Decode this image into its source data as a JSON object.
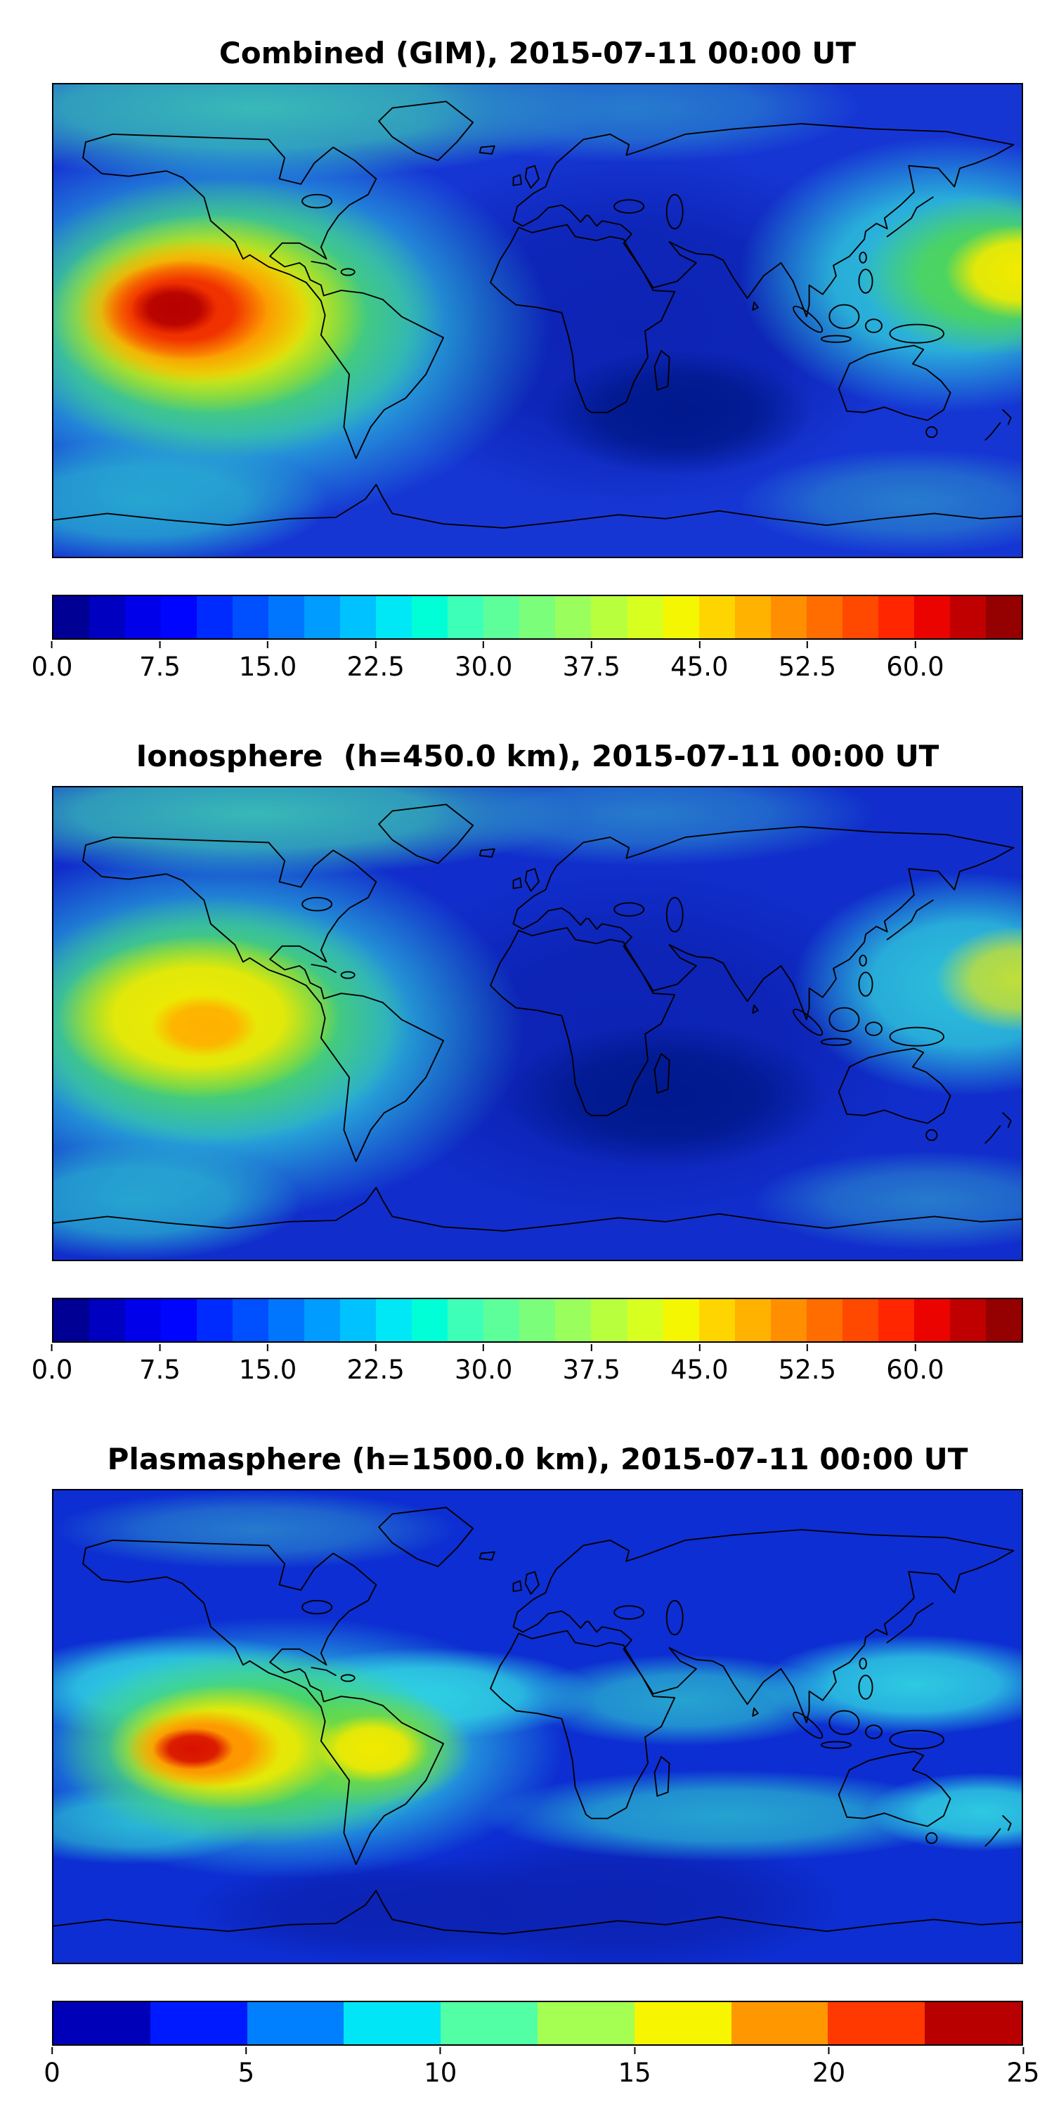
{
  "figure": {
    "background": "#ffffff",
    "text_color": "#000000",
    "panels": [
      {
        "id": "combined",
        "title": "Combined (GIM), 2015-07-11 00:00 UT",
        "colorbar": {
          "colormap": "jet",
          "vmin": 0,
          "vmax": 67.5,
          "tick_labels": [
            "0.0",
            "7.5",
            "15.0",
            "22.5",
            "30.0",
            "37.5",
            "45.0",
            "52.5",
            "60.0"
          ],
          "tick_values": [
            0,
            7.5,
            15,
            22.5,
            30,
            37.5,
            45,
            52.5,
            60
          ],
          "colors": [
            "#000095",
            "#0000c0",
            "#0000eb",
            "#0005ff",
            "#002bff",
            "#0050ff",
            "#0076ff",
            "#009cff",
            "#00c2ff",
            "#00e7f5",
            "#00ffd7",
            "#3effb8",
            "#5dff9a",
            "#7bff7b",
            "#9aff5d",
            "#b8ff3e",
            "#d7ff20",
            "#f5f702",
            "#ffd500",
            "#ffb200",
            "#ff8f00",
            "#ff6c00",
            "#ff4900",
            "#ff2600",
            "#eb0300",
            "#c00000",
            "#950000"
          ]
        }
      },
      {
        "id": "ionosphere",
        "title": "Ionosphere  (h=450.0 km), 2015-07-11 00:00 UT",
        "colorbar": {
          "colormap": "jet",
          "vmin": 0,
          "vmax": 67.5,
          "tick_labels": [
            "0.0",
            "7.5",
            "15.0",
            "22.5",
            "30.0",
            "37.5",
            "45.0",
            "52.5",
            "60.0"
          ],
          "tick_values": [
            0,
            7.5,
            15,
            22.5,
            30,
            37.5,
            45,
            52.5,
            60
          ],
          "colors": [
            "#000095",
            "#0000c0",
            "#0000eb",
            "#0005ff",
            "#002bff",
            "#0050ff",
            "#0076ff",
            "#009cff",
            "#00c2ff",
            "#00e7f5",
            "#00ffd7",
            "#3effb8",
            "#5dff9a",
            "#7bff7b",
            "#9aff5d",
            "#b8ff3e",
            "#d7ff20",
            "#f5f702",
            "#ffd500",
            "#ffb200",
            "#ff8f00",
            "#ff6c00",
            "#ff4900",
            "#ff2600",
            "#eb0300",
            "#c00000",
            "#950000"
          ]
        }
      },
      {
        "id": "plasmasphere",
        "title": "Plasmasphere (h=1500.0 km), 2015-07-11 00:00 UT",
        "colorbar": {
          "colormap": "jet",
          "vmin": 0,
          "vmax": 25,
          "tick_labels": [
            "0",
            "5",
            "10",
            "15",
            "20",
            "25"
          ],
          "tick_values": [
            0,
            5,
            10,
            15,
            20,
            25
          ],
          "colors": [
            "#0000b9",
            "#001aff",
            "#0080ff",
            "#00e6f7",
            "#52ffa5",
            "#a5ff52",
            "#f7f600",
            "#ff9700",
            "#ff3900",
            "#b90000"
          ]
        }
      }
    ]
  },
  "chart_data": [
    {
      "type": "heatmap",
      "title": "Combined (GIM), 2015-07-11 00:00 UT",
      "map_projection": "equirectangular",
      "x_range_lon_deg": [
        -180,
        180
      ],
      "y_range_lat_deg": [
        -90,
        90
      ],
      "axes": {
        "x_tick_labels_visible": false,
        "y_tick_labels_visible": false,
        "grid": false,
        "coastlines": true
      },
      "colormap": "jet",
      "value_range": [
        0,
        67.5
      ],
      "colorbar_ticks": [
        0,
        7.5,
        15,
        22.5,
        30,
        37.5,
        45,
        52.5,
        60
      ],
      "features": [
        {
          "name": "primary maximum, dark-red core over eastern Pacific",
          "lon": -120,
          "lat": 3,
          "value_approx": 63
        },
        {
          "name": "broad day-side orange/yellow enhancement (eastern Pacific / Central America)",
          "lon": -118,
          "lat": 5,
          "value_approx": 47
        },
        {
          "name": "secondary yellow maximum near dateline east of Japan",
          "lon": 178,
          "lat": 18,
          "value_approx": 46
        },
        {
          "name": "cyan/green mid-latitude bands over Pacific and high northern latitudes",
          "value_approx": 25
        },
        {
          "name": "night-side low over Europe / Africa / Indian Ocean",
          "lon": 30,
          "lat": 5,
          "value_approx": 7
        },
        {
          "name": "deep minimum (navy) south Indian Ocean",
          "lon": 50,
          "lat": -35,
          "value_approx": 2
        }
      ]
    },
    {
      "type": "heatmap",
      "title": "Ionosphere  (h=450.0 km), 2015-07-11 00:00 UT",
      "map_projection": "equirectangular",
      "x_range_lon_deg": [
        -180,
        180
      ],
      "y_range_lat_deg": [
        -90,
        90
      ],
      "axes": {
        "x_tick_labels_visible": false,
        "y_tick_labels_visible": false,
        "grid": false,
        "coastlines": true
      },
      "colormap": "jet",
      "value_range": [
        0,
        67.5
      ],
      "colorbar_ticks": [
        0,
        7.5,
        15,
        22.5,
        30,
        37.5,
        45,
        52.5,
        60
      ],
      "features": [
        {
          "name": "maximum, small orange core over eastern Pacific",
          "lon": -124,
          "lat": -1,
          "value_approx": 42
        },
        {
          "name": "broad yellow/green day-side enhancement",
          "lon": -120,
          "lat": 2,
          "value_approx": 37
        },
        {
          "name": "secondary green/yellow patch near dateline",
          "lon": 178,
          "lat": 17,
          "value_approx": 33
        },
        {
          "name": "cyan bands over Pacific mid-latitudes",
          "value_approx": 20
        },
        {
          "name": "night-side minimum (navy) over Africa / Indian Ocean",
          "lon": 35,
          "lat": -10,
          "value_approx": 3
        }
      ]
    },
    {
      "type": "heatmap",
      "title": "Plasmasphere (h=1500.0 km), 2015-07-11 00:00 UT",
      "map_projection": "equirectangular",
      "x_range_lon_deg": [
        -180,
        180
      ],
      "y_range_lat_deg": [
        -90,
        90
      ],
      "axes": {
        "x_tick_labels_visible": false,
        "y_tick_labels_visible": false,
        "grid": false,
        "coastlines": true
      },
      "colormap": "jet",
      "value_range": [
        0,
        25
      ],
      "colorbar_ticks": [
        0,
        5,
        10,
        15,
        20,
        25
      ],
      "features": [
        {
          "name": "maximum, small red core over eastern Pacific",
          "lon": -124,
          "lat": -8,
          "value_approx": 23
        },
        {
          "name": "orange/yellow ring around maximum",
          "lon": -120,
          "lat": -7,
          "value_approx": 18
        },
        {
          "name": "secondary yellow maximum over northern South America",
          "lon": -62,
          "lat": -8,
          "value_approx": 16
        },
        {
          "name": "wavy cyan band across northern mid/low latitudes",
          "lat": 15,
          "value_approx": 10
        },
        {
          "name": "cyan band across southern mid-latitudes",
          "lat": -35,
          "value_approx": 10
        },
        {
          "name": "background blue / high-latitude and south-central minimum",
          "value_approx": 4
        }
      ]
    }
  ]
}
